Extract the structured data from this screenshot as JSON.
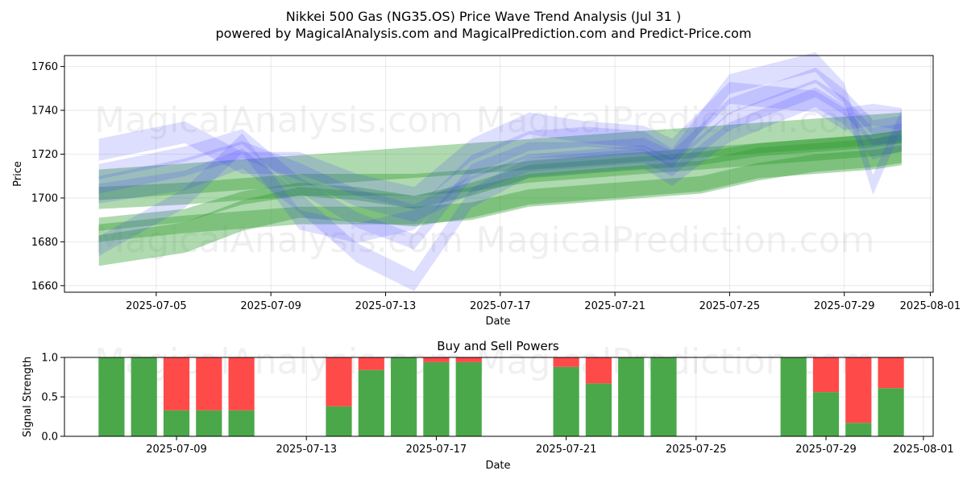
{
  "header": {
    "title": "Nikkei 500 Gas (NG35.OS) Price Wave Trend Analysis (Jul 31 )",
    "subtitle": "powered by MagicalAnalysis.com and MagicalPrediction.com and Predict-Price.com"
  },
  "watermarks": [
    "MagicalAnalysis.com",
    "MagicalPrediction.com"
  ],
  "colors": {
    "blue_band": "#3a3aff",
    "green_band": "#2e9a2e",
    "buy": "#4aa84a",
    "sell": "#ff4a4a"
  },
  "chart_data": [
    {
      "type": "area",
      "title": "",
      "xlabel": "Date",
      "ylabel": "Price",
      "xlim": [
        "2025-07-02",
        "2025-07-31"
      ],
      "ylim": [
        1657,
        1765
      ],
      "x_ticks": [
        "2025-07-05",
        "2025-07-09",
        "2025-07-13",
        "2025-07-17",
        "2025-07-21",
        "2025-07-25",
        "2025-07-29",
        "2025-08-01"
      ],
      "y_ticks": [
        1660,
        1680,
        1700,
        1720,
        1740,
        1760
      ],
      "grid": true,
      "series": [
        {
          "kind": "blue-waves",
          "bands": [
            {
              "x": [
                "2025-07-03",
                "2025-07-06",
                "2025-07-08",
                "2025-07-10",
                "2025-07-12",
                "2025-07-14",
                "2025-07-16",
                "2025-07-18",
                "2025-07-20",
                "2025-07-22",
                "2025-07-23",
                "2025-07-25",
                "2025-07-28",
                "2025-07-29",
                "2025-07-30",
                "2025-07-31"
              ],
              "y": [
                1706,
                1714,
                1722,
                1712,
                1700,
                1693,
                1706,
                1716,
                1718,
                1720,
                1714,
                1735,
                1750,
                1742,
                1728,
                1730
              ],
              "width": 8
            },
            {
              "x": [
                "2025-07-03",
                "2025-07-06",
                "2025-07-08",
                "2025-07-10",
                "2025-07-12",
                "2025-07-14",
                "2025-07-16",
                "2025-07-18",
                "2025-07-20",
                "2025-07-22",
                "2025-07-23",
                "2025-07-25",
                "2025-07-28",
                "2025-07-29",
                "2025-07-30",
                "2025-07-31"
              ],
              "y": [
                1712,
                1720,
                1728,
                1706,
                1690,
                1680,
                1712,
                1722,
                1722,
                1724,
                1718,
                1742,
                1756,
                1746,
                1732,
                1734
              ],
              "width": 7
            },
            {
              "x": [
                "2025-07-03",
                "2025-07-06",
                "2025-07-08",
                "2025-07-10",
                "2025-07-12",
                "2025-07-14",
                "2025-07-16",
                "2025-07-18",
                "2025-07-20",
                "2025-07-22",
                "2025-07-23",
                "2025-07-25",
                "2025-07-28",
                "2025-07-29",
                "2025-07-30",
                "2025-07-31"
              ],
              "y": [
                1702,
                1708,
                1718,
                1698,
                1675,
                1662,
                1700,
                1714,
                1716,
                1718,
                1710,
                1730,
                1746,
                1738,
                1722,
                1726
              ],
              "width": 9
            },
            {
              "x": [
                "2025-07-03",
                "2025-07-06",
                "2025-07-08",
                "2025-07-10",
                "2025-07-12",
                "2025-07-14",
                "2025-07-16",
                "2025-07-18",
                "2025-07-20",
                "2025-07-22",
                "2025-07-23",
                "2025-07-25",
                "2025-07-28",
                "2025-07-29",
                "2025-07-30",
                "2025-07-31"
              ],
              "y": [
                1678,
                1700,
                1725,
                1690,
                1684,
                1690,
                1715,
                1726,
                1728,
                1726,
                1718,
                1752,
                1762,
                1748,
                1706,
                1736
              ],
              "width": 9
            },
            {
              "x": [
                "2025-07-03",
                "2025-07-06",
                "2025-07-08",
                "2025-07-10",
                "2025-07-12",
                "2025-07-14",
                "2025-07-16",
                "2025-07-18",
                "2025-07-20",
                "2025-07-22",
                "2025-07-23",
                "2025-07-25",
                "2025-07-28",
                "2025-07-29",
                "2025-07-30",
                "2025-07-31"
              ],
              "y": [
                1722,
                1730,
                1716,
                1716,
                1706,
                1700,
                1722,
                1734,
                1730,
                1728,
                1722,
                1748,
                1744,
                1736,
                1738,
                1736
              ],
              "width": 10
            }
          ]
        },
        {
          "kind": "green-trend",
          "bands": [
            {
              "x": [
                "2025-07-03",
                "2025-07-06",
                "2025-07-08",
                "2025-07-10",
                "2025-07-12",
                "2025-07-14",
                "2025-07-16",
                "2025-07-18",
                "2025-07-20",
                "2025-07-22",
                "2025-07-24",
                "2025-07-26",
                "2025-07-28",
                "2025-07-30",
                "2025-07-31"
              ],
              "y": [
                1688,
                1692,
                1700,
                1704,
                1702,
                1698,
                1704,
                1712,
                1714,
                1716,
                1718,
                1722,
                1724,
                1726,
                1728
              ],
              "width": 6
            },
            {
              "x": [
                "2025-07-03",
                "2025-07-06",
                "2025-07-08",
                "2025-07-10",
                "2025-07-12",
                "2025-07-14",
                "2025-07-16",
                "2025-07-18",
                "2025-07-20",
                "2025-07-22",
                "2025-07-24",
                "2025-07-26",
                "2025-07-28",
                "2025-07-30",
                "2025-07-31"
              ],
              "y": [
                1676,
                1682,
                1692,
                1698,
                1696,
                1694,
                1698,
                1704,
                1706,
                1708,
                1710,
                1716,
                1718,
                1720,
                1722
              ],
              "width": 14
            },
            {
              "x": [
                "2025-07-03",
                "2025-07-06",
                "2025-07-08",
                "2025-07-10",
                "2025-07-12",
                "2025-07-14",
                "2025-07-16",
                "2025-07-18",
                "2025-07-20",
                "2025-07-22",
                "2025-07-24",
                "2025-07-26",
                "2025-07-28",
                "2025-07-30",
                "2025-07-31"
              ],
              "y": [
                1700,
                1702,
                1704,
                1706,
                1706,
                1706,
                1708,
                1712,
                1714,
                1716,
                1718,
                1720,
                1722,
                1724,
                1726
              ],
              "width": 10
            },
            {
              "x": [
                "2025-07-03",
                "2025-07-06",
                "2025-07-08",
                "2025-07-10",
                "2025-07-12",
                "2025-07-14",
                "2025-07-16",
                "2025-07-18",
                "2025-07-20",
                "2025-07-22",
                "2025-07-24",
                "2025-07-26",
                "2025-07-28",
                "2025-07-30",
                "2025-07-31"
              ],
              "y": [
                1684,
                1688,
                1690,
                1692,
                1692,
                1692,
                1694,
                1700,
                1702,
                1704,
                1706,
                1712,
                1716,
                1718,
                1720
              ],
              "width": 8
            },
            {
              "x": [
                "2025-07-03",
                "2025-07-31"
              ],
              "y": [
                1706,
                1732
              ],
              "width": 14
            }
          ]
        }
      ]
    },
    {
      "type": "bar",
      "title": "Buy and Sell Powers",
      "xlabel": "Date",
      "ylabel": "Signal Strength",
      "ylim": [
        0,
        1.0
      ],
      "xlim": [
        "2025-07-06",
        "2025-07-31"
      ],
      "x_ticks": [
        "2025-07-09",
        "2025-07-13",
        "2025-07-17",
        "2025-07-21",
        "2025-07-25",
        "2025-07-29",
        "2025-08-01"
      ],
      "y_ticks": [
        "0.0",
        "0.5",
        "1.0"
      ],
      "grid": true,
      "categories": [
        "2025-07-07",
        "2025-07-08",
        "2025-07-09",
        "2025-07-10",
        "2025-07-11",
        "2025-07-14",
        "2025-07-15",
        "2025-07-16",
        "2025-07-17",
        "2025-07-18",
        "2025-07-21",
        "2025-07-22",
        "2025-07-23",
        "2025-07-24",
        "2025-07-28",
        "2025-07-29",
        "2025-07-30",
        "2025-07-31"
      ],
      "series": [
        {
          "name": "Buy",
          "values": [
            1.0,
            1.0,
            0.33,
            0.33,
            0.33,
            0.38,
            0.84,
            1.0,
            0.94,
            0.94,
            0.88,
            0.67,
            1.0,
            1.0,
            1.0,
            0.56,
            0.17,
            0.61
          ]
        },
        {
          "name": "Sell",
          "values": [
            0.0,
            0.0,
            0.67,
            0.67,
            0.67,
            0.62,
            0.16,
            0.0,
            0.06,
            0.06,
            0.12,
            0.33,
            0.0,
            0.0,
            0.0,
            0.44,
            0.83,
            0.39
          ]
        }
      ]
    }
  ]
}
